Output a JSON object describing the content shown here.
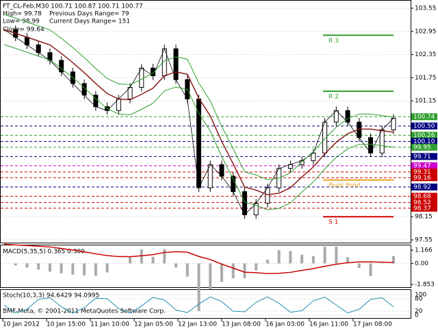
{
  "header": {
    "symbol": "FT_CL-Feb,M30  100.71 100.87 100.71 100.77",
    "high": "High= 99.78",
    "prev_range": "Previous Days Range= 79",
    "low": "Low= 98.99",
    "cur_range": "Current Days Range= 151",
    "close": "Close= 99.64"
  },
  "price_axis": {
    "ticks": [
      103.55,
      102.95,
      102.35,
      101.75,
      101.15,
      98.15,
      97.55
    ],
    "levels": [
      {
        "value": 100.74,
        "label": "100.74",
        "color": "#2e9e2e"
      },
      {
        "value": 100.5,
        "label": "100.50",
        "color": "#000080"
      },
      {
        "value": 100.26,
        "label": "100.26",
        "color": "#2e9e2e"
      },
      {
        "value": 100.1,
        "label": "100.10",
        "color": "#000080"
      },
      {
        "value": 99.95,
        "label": "99.95",
        "color": "#2e9e2e"
      },
      {
        "value": 99.71,
        "label": "99.71",
        "color": "#000080"
      },
      {
        "value": 99.47,
        "label": "99.47",
        "color": "#cc00cc"
      },
      {
        "value": 99.31,
        "label": "99.31",
        "color": "#cc0000"
      },
      {
        "value": 99.16,
        "label": "99.16",
        "color": "#cc0000"
      },
      {
        "value": 98.92,
        "label": "98.92",
        "color": "#000080"
      },
      {
        "value": 98.68,
        "label": "98.68",
        "color": "#cc0000"
      },
      {
        "value": 98.52,
        "label": "98.52",
        "color": "#cc0000"
      },
      {
        "value": 98.37,
        "label": "98.37",
        "color": "#cc0000"
      }
    ]
  },
  "pivots": [
    {
      "label": "R 3",
      "value": 102.85
    },
    {
      "label": "R 2",
      "value": 101.4
    },
    {
      "label": "Pivot Point",
      "value": 99.1
    },
    {
      "label": "S 1",
      "value": 98.15
    }
  ],
  "closes": [
    103.0,
    102.8,
    102.6,
    102.4,
    102.2,
    101.9,
    101.6,
    101.3,
    101.0,
    100.9,
    101.2,
    101.5,
    102.0,
    101.8,
    102.5,
    101.7,
    101.2,
    98.9,
    99.5,
    99.2,
    98.8,
    98.2,
    98.5,
    98.9,
    99.4,
    99.5,
    99.6,
    99.8,
    100.6,
    100.9,
    100.6,
    100.2,
    99.8,
    100.4,
    100.7
  ],
  "macd": {
    "title": "MACD(5,35,5) 0.365 0.300",
    "ticks": [
      {
        "value": 1.166,
        "label": "1.166"
      },
      {
        "value": 0,
        "label": "0.00"
      },
      {
        "value": -1.853,
        "label": "-1.853"
      }
    ]
  },
  "stoch": {
    "title": "Stoch(10,3,3) 94.6429 94.0995",
    "ticks": [
      100,
      80,
      20,
      0
    ]
  },
  "time_axis": [
    "10 Jan 2012",
    "10 Jan 15:00",
    "11 Jan 10:00",
    "12 Jan 05:00",
    "12 Jan 13:00",
    "13 Jan 08:00",
    "16 Jan 03:00",
    "16 Jan 11:00",
    "17 Jan 08:00"
  ],
  "footer": "BMF-Meta, © 2001-2011 MetaQuotes Software Corp."
}
